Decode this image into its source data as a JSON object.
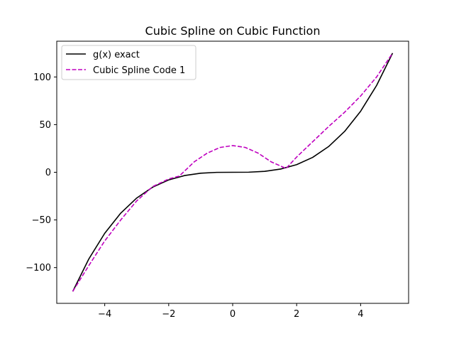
{
  "chart_data": {
    "type": "line",
    "title": "Cubic Spline on Cubic Function",
    "xlabel": "",
    "ylabel": "",
    "xlim": [
      -5.5,
      5.5
    ],
    "ylim": [
      -137.5,
      137.5
    ],
    "x_ticks": [
      -4,
      -2,
      0,
      2,
      4
    ],
    "y_ticks": [
      -100,
      -50,
      0,
      50,
      100
    ],
    "x_tick_labels": [
      "−4",
      "−2",
      "0",
      "2",
      "4"
    ],
    "y_tick_labels": [
      "−100",
      "−50",
      "0",
      "50",
      "100"
    ],
    "grid": false,
    "legend": "top-left",
    "series": [
      {
        "name": "g(x) exact",
        "color": "#000000",
        "dash": "solid",
        "x": [
          -5,
          -4.5,
          -4,
          -3.5,
          -3,
          -2.5,
          -2,
          -1.5,
          -1,
          -0.5,
          0,
          0.5,
          1,
          1.5,
          2,
          2.5,
          3,
          3.5,
          4,
          4.5,
          5
        ],
        "y": [
          -125,
          -91.1,
          -64,
          -42.9,
          -27,
          -15.6,
          -8,
          -3.4,
          -1,
          -0.1,
          0,
          0.1,
          1,
          3.4,
          8,
          15.6,
          27,
          42.9,
          64,
          91.1,
          125
        ]
      },
      {
        "name": "Cubic Spline Code 1",
        "color": "#bf00bf",
        "dash": "dashed",
        "x": [
          -5,
          -4.5,
          -4,
          -3.5,
          -3,
          -2.5,
          -2,
          -1.67,
          -1.2,
          -0.8,
          -0.4,
          0,
          0.4,
          0.8,
          1.2,
          1.67,
          2,
          2.5,
          3,
          3.5,
          4,
          4.5,
          5
        ],
        "y": [
          -125,
          -98,
          -72,
          -50,
          -30,
          -15,
          -7,
          -4,
          11,
          20,
          26,
          28,
          26,
          20,
          11,
          4,
          16,
          32,
          48,
          63,
          80,
          100,
          125
        ]
      }
    ]
  }
}
